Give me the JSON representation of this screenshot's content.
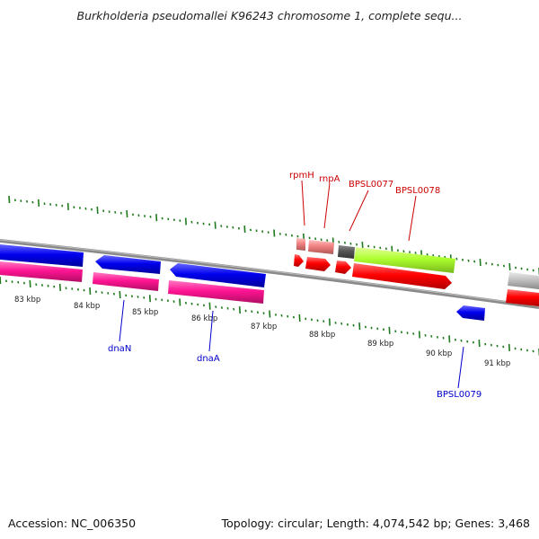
{
  "header": {
    "title": "Burkholderia pseudomallei K96243 chromosome 1, complete sequ..."
  },
  "footer": {
    "accession": "Accession: NC_006350",
    "topology": "Topology: circular; Length: 4,074,542 bp; Genes: 3,468"
  },
  "scale": {
    "labels": [
      "83 kbp",
      "84 kbp",
      "85 kbp",
      "86 kbp",
      "87 kbp",
      "88 kbp",
      "89 kbp",
      "90 kbp",
      "91 kbp"
    ]
  },
  "genes": {
    "rpmH": "rpmH",
    "rnpA": "rnpA",
    "bpsl0077": "BPSL0077",
    "bpsl0078": "BPSL0078",
    "dnaN": "dnaN",
    "dnaA": "dnaA",
    "bpsl0079": "BPSL0079"
  },
  "colors": {
    "backbone": "#8a8a8a",
    "forward_label": "#cc0000",
    "reverse_label": "#0000cc",
    "tick": "#1f7a1f",
    "blue_gene": "#0000ee",
    "magenta_gene": "#ff1493",
    "red_gene": "#ff0000",
    "salmon_gene": "#f08080",
    "green_gene": "#adff2f",
    "grey_gene": "#c0c0c0",
    "dark_grey_gene": "#555555"
  }
}
